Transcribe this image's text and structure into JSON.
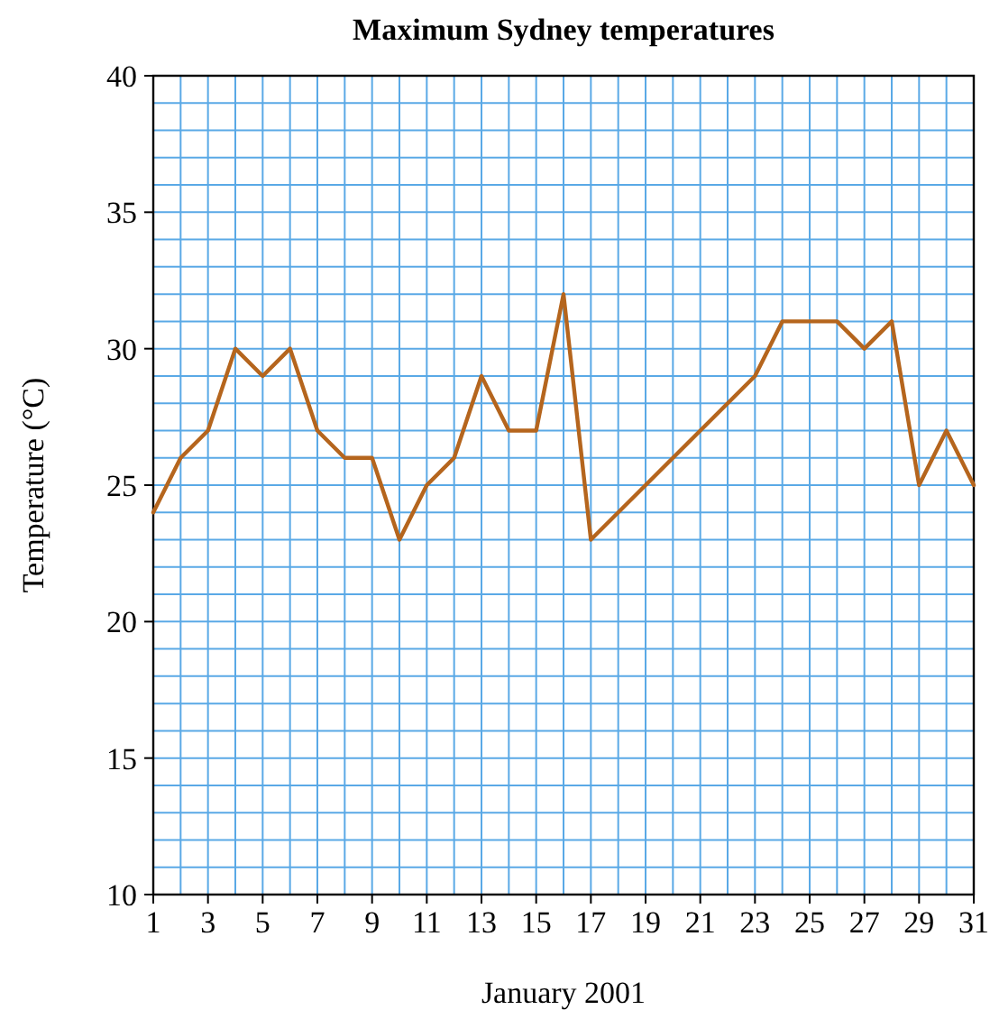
{
  "chart_data": {
    "type": "line",
    "title": "Maximum Sydney temperatures",
    "xlabel": "January 2001",
    "ylabel": "Temperature (°C)",
    "x": [
      1,
      2,
      3,
      4,
      5,
      6,
      7,
      8,
      9,
      10,
      11,
      12,
      13,
      14,
      15,
      16,
      17,
      18,
      19,
      20,
      21,
      22,
      23,
      24,
      25,
      26,
      27,
      28,
      29,
      30,
      31
    ],
    "series": [
      {
        "color": "#b5651d",
        "values": [
          24,
          26,
          27,
          30,
          29,
          30,
          27,
          26,
          26,
          23,
          25,
          26,
          29,
          27,
          27,
          32,
          23,
          24,
          25,
          26,
          27,
          28,
          29,
          31,
          31,
          31,
          30,
          31,
          25,
          27,
          25
        ]
      }
    ],
    "xlim": [
      1,
      31
    ],
    "xticks": [
      1,
      {
        "value": 2,
        "label": null
      },
      3,
      {
        "value": 4,
        "label": null
      },
      5,
      {
        "value": 6,
        "label": null
      },
      7,
      {
        "value": 8,
        "label": null
      },
      9,
      {
        "value": 10,
        "label": null
      },
      11,
      {
        "value": 12,
        "label": null
      },
      13,
      {
        "value": 14,
        "label": null
      },
      15,
      {
        "value": 16,
        "label": null
      },
      17,
      {
        "value": 18,
        "label": null
      },
      19,
      {
        "value": 20,
        "label": null
      },
      21,
      {
        "value": 22,
        "label": null
      },
      23,
      {
        "value": 24,
        "label": null
      },
      25,
      {
        "value": 26,
        "label": null
      },
      27,
      {
        "value": 28,
        "label": null
      },
      29,
      {
        "value": 30,
        "label": null
      },
      31
    ],
    "ylim": [
      10,
      40
    ],
    "yticks": [
      10,
      {
        "value": 11,
        "label": null
      },
      {
        "value": 12,
        "label": null
      },
      {
        "value": 13,
        "label": null
      },
      {
        "value": 14,
        "label": null
      },
      15,
      {
        "value": 16,
        "label": null
      },
      {
        "value": 17,
        "label": null
      },
      {
        "value": 18,
        "label": null
      },
      {
        "value": 19,
        "label": null
      },
      20,
      {
        "value": 21,
        "label": null
      },
      {
        "value": 22,
        "label": null
      },
      {
        "value": 23,
        "label": null
      },
      {
        "value": 24,
        "label": null
      },
      25,
      {
        "value": 26,
        "label": null
      },
      {
        "value": 27,
        "label": null
      },
      {
        "value": 28,
        "label": null
      },
      {
        "value": 29,
        "label": null
      },
      30,
      {
        "value": 31,
        "label": null
      },
      {
        "value": 32,
        "label": null
      },
      {
        "value": 33,
        "label": null
      },
      {
        "value": 34,
        "label": null
      },
      35,
      {
        "value": 36,
        "label": null
      },
      {
        "value": 37,
        "label": null
      },
      {
        "value": 38,
        "label": null
      },
      {
        "value": 39,
        "label": null
      },
      40
    ],
    "grid": true,
    "marker": "none",
    "line_style": "solid"
  }
}
